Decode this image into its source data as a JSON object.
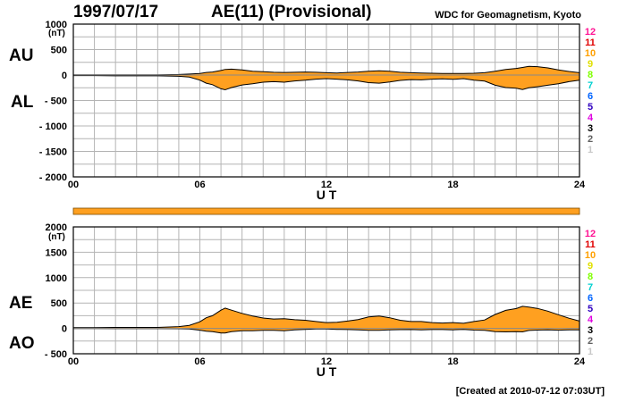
{
  "header": {
    "date": "1997/07/17",
    "title": "AE(11) (Provisional)",
    "credit": "WDC for Geomagnetism, Kyoto",
    "created": "[Created at 2010-07-12 07:03UT]"
  },
  "colors": {
    "fill": "#ffa020",
    "grid": "#b4b4b4",
    "line": "#000000"
  },
  "stations": {
    "labels": [
      "12",
      "11",
      "10",
      "9",
      "8",
      "7",
      "6",
      "5",
      "4",
      "3",
      "2",
      "1"
    ],
    "colors": [
      "#ff1493",
      "#e00000",
      "#ffa000",
      "#e0e000",
      "#80ff00",
      "#00d0d0",
      "#0064ff",
      "#3000c0",
      "#e000e0",
      "#000000",
      "#606060",
      "#c8c8c8"
    ]
  },
  "chart_data": [
    {
      "type": "area",
      "panel": "upper",
      "series_labels": [
        "AU",
        "AL"
      ],
      "unit": "(nT)",
      "xlabel": "U T",
      "xlim": [
        0,
        24
      ],
      "x_ticks": [
        0,
        6,
        12,
        18,
        24
      ],
      "x_tick_labels": [
        "00",
        "06",
        "12",
        "18",
        "24"
      ],
      "ylim": [
        -2000,
        1000
      ],
      "y_ticks": [
        1000,
        500,
        0,
        -500,
        -1000,
        -1500,
        -2000
      ],
      "y_tick_labels": [
        "1000",
        "500",
        "0",
        "- 500",
        "- 1000",
        "- 1500",
        "- 2000"
      ],
      "grid": true,
      "x": [
        0,
        1,
        2,
        3,
        4,
        5,
        5.5,
        6,
        6.3,
        6.6,
        7,
        7.2,
        7.5,
        8,
        8.5,
        9,
        9.5,
        10,
        10.5,
        11,
        11.5,
        12,
        12.5,
        13,
        13.5,
        14,
        14.5,
        15,
        15.5,
        16,
        16.5,
        17,
        17.5,
        18,
        18.5,
        19,
        19.5,
        20,
        20.5,
        21,
        21.3,
        21.6,
        22,
        22.5,
        23,
        23.5,
        24
      ],
      "AU": [
        5,
        5,
        5,
        5,
        5,
        10,
        20,
        30,
        50,
        60,
        90,
        110,
        115,
        100,
        75,
        65,
        55,
        50,
        55,
        60,
        55,
        45,
        40,
        50,
        60,
        75,
        85,
        75,
        55,
        45,
        40,
        35,
        30,
        30,
        30,
        35,
        45,
        75,
        110,
        130,
        150,
        170,
        165,
        140,
        100,
        70,
        45
      ],
      "AL": [
        -10,
        -10,
        -15,
        -15,
        -15,
        -25,
        -40,
        -100,
        -160,
        -190,
        -270,
        -290,
        -245,
        -195,
        -170,
        -140,
        -130,
        -140,
        -115,
        -100,
        -80,
        -70,
        -80,
        -95,
        -115,
        -150,
        -160,
        -135,
        -105,
        -90,
        -95,
        -80,
        -75,
        -85,
        -70,
        -100,
        -120,
        -200,
        -245,
        -260,
        -285,
        -250,
        -230,
        -200,
        -170,
        -130,
        -100
      ]
    },
    {
      "type": "line",
      "panel": "data-availability",
      "value": 1
    },
    {
      "type": "area",
      "panel": "lower",
      "series_labels": [
        "AE",
        "AO"
      ],
      "unit": "(nT)",
      "xlabel": "U T",
      "xlim": [
        0,
        24
      ],
      "x_ticks": [
        0,
        6,
        12,
        18,
        24
      ],
      "x_tick_labels": [
        "00",
        "06",
        "12",
        "18",
        "24"
      ],
      "ylim": [
        -500,
        2000
      ],
      "y_ticks": [
        2000,
        1500,
        1000,
        500,
        0,
        -500
      ],
      "y_tick_labels": [
        "2000",
        "1500",
        "1000",
        "500",
        "0",
        "- 500"
      ],
      "grid": true,
      "x": [
        0,
        1,
        2,
        3,
        4,
        5,
        5.5,
        6,
        6.3,
        6.6,
        7,
        7.2,
        7.5,
        8,
        8.5,
        9,
        9.5,
        10,
        10.5,
        11,
        11.5,
        12,
        12.5,
        13,
        13.5,
        14,
        14.5,
        15,
        15.5,
        16,
        16.5,
        17,
        17.5,
        18,
        18.5,
        19,
        19.5,
        20,
        20.5,
        21,
        21.3,
        21.6,
        22,
        22.5,
        23,
        23.5,
        24
      ],
      "AE": [
        15,
        15,
        20,
        20,
        20,
        35,
        60,
        130,
        210,
        250,
        360,
        400,
        360,
        295,
        245,
        205,
        185,
        190,
        170,
        160,
        135,
        115,
        120,
        145,
        175,
        225,
        245,
        210,
        160,
        135,
        135,
        115,
        105,
        115,
        100,
        135,
        165,
        275,
        355,
        390,
        435,
        420,
        395,
        340,
        270,
        200,
        145
      ],
      "AO": [
        -2,
        -2,
        -5,
        -5,
        -5,
        -7,
        -10,
        -35,
        -55,
        -65,
        -90,
        -90,
        -65,
        -48,
        -48,
        -38,
        -38,
        -45,
        -30,
        -20,
        -13,
        -12,
        -20,
        -23,
        -28,
        -38,
        -38,
        -30,
        -25,
        -23,
        -28,
        -23,
        -23,
        -28,
        -20,
        -33,
        -38,
        -63,
        -68,
        -65,
        -68,
        -40,
        -33,
        -30,
        -35,
        -30,
        -28
      ]
    }
  ]
}
